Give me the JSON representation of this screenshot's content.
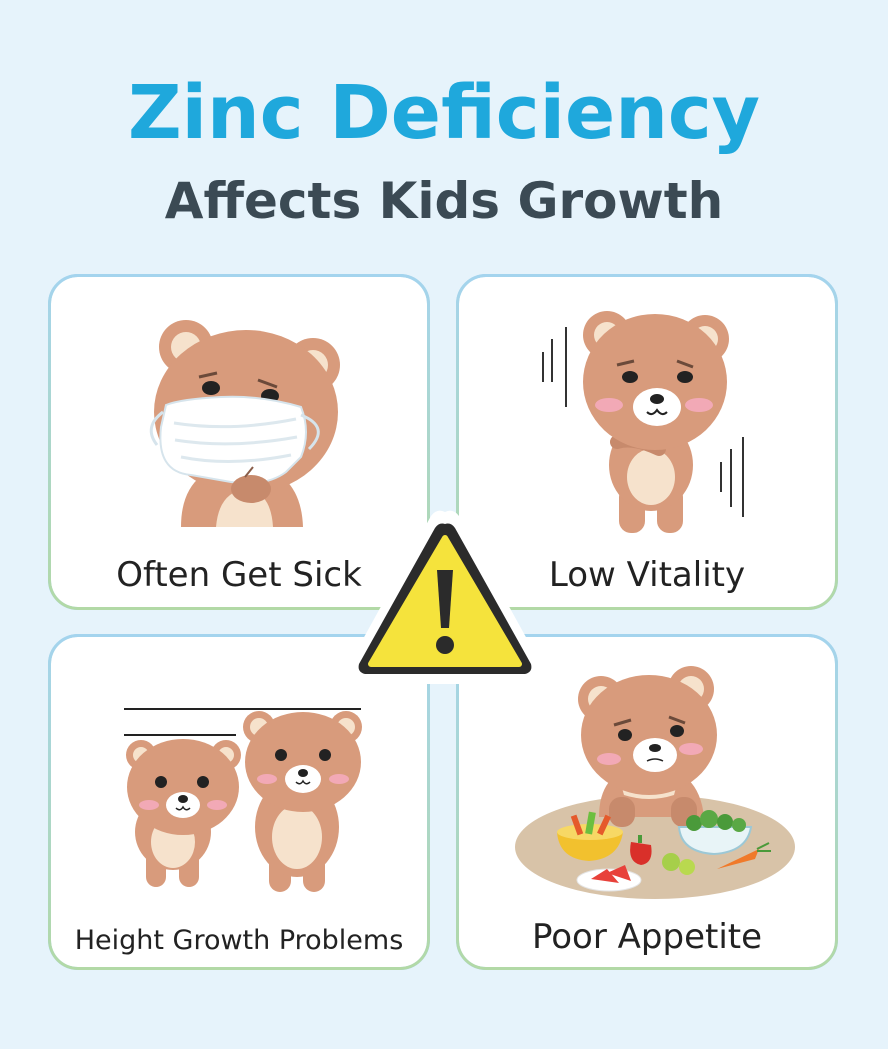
{
  "title": "Zinc Deficiency",
  "subtitle": "Affects Kids Growth",
  "cards": [
    {
      "label": "Often Get Sick",
      "icon": "masked-bear-icon"
    },
    {
      "label": "Low Vitality",
      "icon": "tired-bear-icon"
    },
    {
      "label": "Height Growth Problems",
      "icon": "two-bears-height-icon"
    },
    {
      "label": "Poor Appetite",
      "icon": "bear-food-table-icon"
    }
  ],
  "warning_icon": "warning-triangle-icon",
  "colors": {
    "background": "#e6f3fb",
    "title": "#1fa8dc",
    "subtitle": "#3b4a54",
    "bear": "#d89b7c",
    "warning": "#f5e33c"
  }
}
